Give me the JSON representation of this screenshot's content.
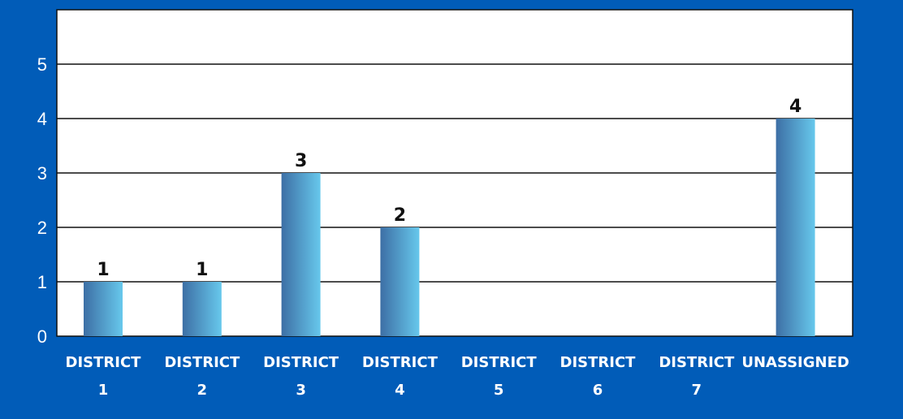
{
  "chart_data": {
    "type": "bar",
    "categories": [
      [
        "DISTRICT",
        "1"
      ],
      [
        "DISTRICT",
        "2"
      ],
      [
        "DISTRICT",
        "3"
      ],
      [
        "DISTRICT",
        "4"
      ],
      [
        "DISTRICT",
        "5"
      ],
      [
        "DISTRICT",
        "6"
      ],
      [
        "DISTRICT",
        "7"
      ],
      [
        "UNASSIGNED"
      ]
    ],
    "values": [
      1,
      1,
      3,
      2,
      0,
      0,
      0,
      4
    ],
    "data_labels": [
      "1",
      "1",
      "3",
      "2",
      "",
      "",
      "",
      "4"
    ],
    "y_ticks": [
      0,
      1,
      2,
      3,
      4,
      5
    ],
    "ylim": [
      0,
      6
    ],
    "grid": true,
    "legend": "none",
    "colors": {
      "background": "#015cb8",
      "plot_area": "#ffffff",
      "bar_dark": "#3d6fa5",
      "bar_light": "#67c8ec",
      "grid": "#111111"
    }
  }
}
